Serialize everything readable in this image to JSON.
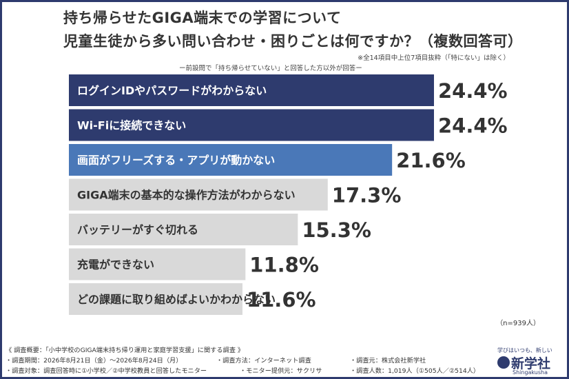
{
  "header": {
    "title_line1": "持ち帰らせたGIGA端末での学習について",
    "title_line2": "児童生徒から多い問い合わせ・困りごとは何ですか？（複数回答可）",
    "note_right": "※全14項目中上位7項目抜粋（「特にない」は除く）",
    "note_center": "ー前設問で「持ち帰らせていない」と回答した方以外が回答ー"
  },
  "chart_data": {
    "type": "bar",
    "orientation": "horizontal",
    "categories": [
      "ログインIDやパスワードがわからない",
      "Wi-Fiに接続できない",
      "画面がフリーズする・アプリが動かない",
      "GIGA端末の基本的な操作方法がわからない",
      "バッテリーがすぐ切れる",
      "充電ができない",
      "どの課題に取り組めばよいかわからない"
    ],
    "values": [
      24.4,
      24.4,
      21.6,
      17.3,
      15.3,
      11.8,
      11.6
    ],
    "value_labels": [
      "24.4%",
      "24.4%",
      "21.6%",
      "17.3%",
      "15.3%",
      "11.8%",
      "11.6%"
    ],
    "xlim": [
      0,
      24.4
    ],
    "grid": false,
    "colors": {
      "top": "#2e3b6e",
      "third": "#4a78b8",
      "rest": "#d9d9d9",
      "label_dark_bg": "#ffffff",
      "label_light_bg": "#333333",
      "value": "#333333"
    }
  },
  "sample_note": "（n=939人）",
  "footer": {
    "line1": "《 調査概要：「小中学校のGIGA端末持ち帰り運用と家庭学習支援」に関する調査 》",
    "period": "・調査期間：2026年8月21日（金）〜2026年8月24日（月）",
    "method": "・調査方法：インターネット調査",
    "source": "・調査元：株式会社新学社",
    "target": "・調査対象：調査回答時に①小学校／②中学校教員と回答したモニター",
    "provider": "・モニター提供元：サクリサ",
    "count": "・調査人数：1,019人（①505人／②514人）"
  },
  "logo": {
    "tagline": "学びはいつも、新しい",
    "name": "新学社",
    "sub": "Shingakusha"
  }
}
